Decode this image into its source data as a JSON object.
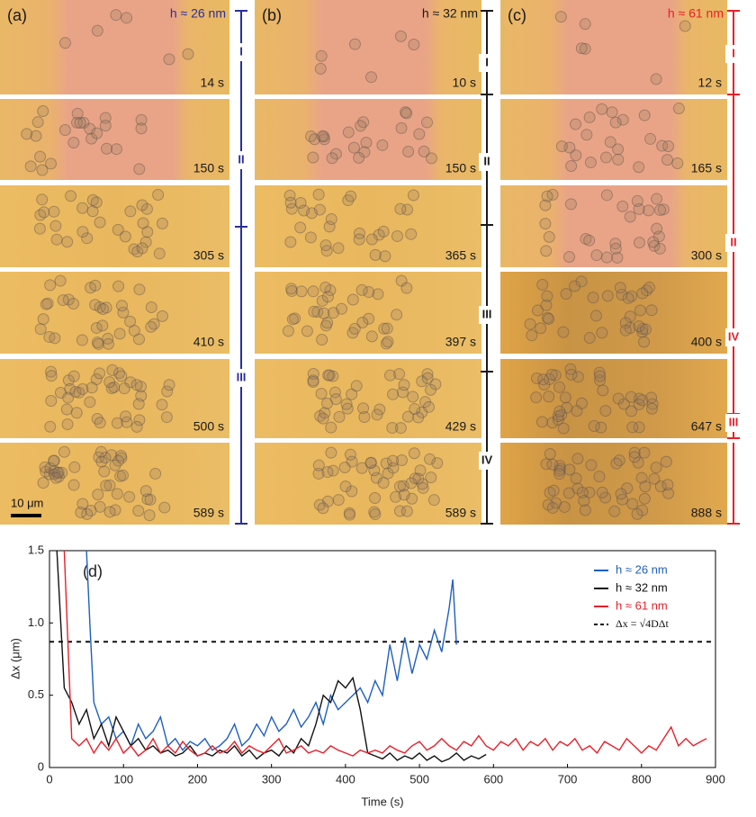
{
  "panels": [
    {
      "label": "(a)",
      "thickness": "h ≈ 26 nm",
      "color": "#2a2f9c",
      "times": [
        "14 s",
        "150 s",
        "305 s",
        "410 s",
        "500 s",
        "589 s"
      ],
      "stages": [
        "I",
        "II",
        "III"
      ]
    },
    {
      "label": "(b)",
      "thickness": "h ≈ 32 nm",
      "color": "#1a1a1a",
      "times": [
        "10 s",
        "150 s",
        "365 s",
        "397 s",
        "429 s",
        "589 s"
      ],
      "stages": [
        "I",
        "II",
        "III",
        "IV"
      ]
    },
    {
      "label": "(c)",
      "thickness": "h ≈ 61 nm",
      "color": "#e8202a",
      "times": [
        "12 s",
        "165 s",
        "300 s",
        "400 s",
        "647 s",
        "888 s"
      ],
      "stages": [
        "I",
        "II",
        "IV",
        "III"
      ]
    }
  ],
  "scale_bar": "10 μm",
  "chart_data": {
    "type": "line",
    "annotation": "(d)",
    "x_label": "Time (s)",
    "y_label": "Δx (μm)",
    "xlim": [
      0,
      900
    ],
    "xticks": [
      0,
      100,
      200,
      300,
      400,
      500,
      600,
      700,
      800,
      900
    ],
    "ylim": [
      0,
      1.5
    ],
    "yticks": [
      0,
      0.5,
      {
        "value": 1,
        "label": "1.0"
      },
      1.5
    ],
    "legend": "upper right",
    "series": [
      {
        "name": "h ≈ 26 nm",
        "color": "#1f5fbf",
        "x": [
          50,
          55,
          60,
          70,
          80,
          90,
          100,
          110,
          120,
          130,
          140,
          150,
          160,
          170,
          180,
          190,
          200,
          210,
          220,
          230,
          240,
          250,
          260,
          270,
          280,
          290,
          300,
          310,
          320,
          330,
          340,
          350,
          360,
          370,
          380,
          390,
          400,
          410,
          420,
          430,
          440,
          450,
          460,
          470,
          480,
          490,
          500,
          510,
          520,
          530,
          540,
          545,
          550
        ],
        "values": [
          1.5,
          0.95,
          0.45,
          0.3,
          0.35,
          0.2,
          0.25,
          0.15,
          0.3,
          0.2,
          0.25,
          0.35,
          0.15,
          0.2,
          0.12,
          0.18,
          0.15,
          0.2,
          0.12,
          0.15,
          0.2,
          0.3,
          0.15,
          0.2,
          0.3,
          0.22,
          0.35,
          0.25,
          0.3,
          0.4,
          0.28,
          0.35,
          0.45,
          0.3,
          0.5,
          0.4,
          0.45,
          0.5,
          0.55,
          0.45,
          0.6,
          0.5,
          0.85,
          0.6,
          0.9,
          0.65,
          0.85,
          0.75,
          0.95,
          0.8,
          1.1,
          1.3,
          0.85
        ]
      },
      {
        "name": "h ≈ 32 nm",
        "color": "#111111",
        "x": [
          10,
          20,
          30,
          40,
          50,
          60,
          70,
          80,
          90,
          100,
          110,
          120,
          130,
          140,
          150,
          160,
          170,
          180,
          190,
          200,
          210,
          220,
          230,
          240,
          250,
          260,
          270,
          280,
          290,
          300,
          310,
          320,
          330,
          340,
          350,
          360,
          370,
          380,
          390,
          400,
          410,
          420,
          430,
          440,
          450,
          460,
          470,
          480,
          490,
          500,
          510,
          520,
          530,
          540,
          550,
          560,
          570,
          580,
          590
        ],
        "values": [
          1.5,
          0.55,
          0.45,
          0.3,
          0.4,
          0.2,
          0.3,
          0.15,
          0.35,
          0.25,
          0.15,
          0.2,
          0.12,
          0.15,
          0.1,
          0.12,
          0.08,
          0.1,
          0.15,
          0.08,
          0.1,
          0.08,
          0.12,
          0.1,
          0.15,
          0.08,
          0.12,
          0.06,
          0.1,
          0.12,
          0.08,
          0.15,
          0.1,
          0.2,
          0.15,
          0.3,
          0.5,
          0.45,
          0.6,
          0.55,
          0.62,
          0.4,
          0.1,
          0.08,
          0.06,
          0.1,
          0.05,
          0.08,
          0.06,
          0.1,
          0.05,
          0.08,
          0.04,
          0.06,
          0.1,
          0.05,
          0.08,
          0.06,
          0.09
        ]
      },
      {
        "name": "h ≈ 61 nm",
        "color": "#e8202a",
        "x": [
          20,
          30,
          40,
          50,
          60,
          70,
          80,
          90,
          100,
          110,
          120,
          130,
          140,
          150,
          160,
          170,
          180,
          190,
          200,
          210,
          220,
          230,
          240,
          250,
          260,
          270,
          280,
          290,
          300,
          310,
          320,
          330,
          340,
          350,
          360,
          370,
          380,
          390,
          400,
          410,
          420,
          430,
          440,
          450,
          460,
          470,
          480,
          490,
          500,
          510,
          520,
          530,
          540,
          550,
          560,
          570,
          580,
          590,
          600,
          610,
          620,
          630,
          640,
          650,
          660,
          670,
          680,
          690,
          700,
          710,
          720,
          730,
          740,
          750,
          760,
          770,
          780,
          790,
          800,
          810,
          820,
          830,
          840,
          850,
          860,
          870,
          880,
          888
        ],
        "values": [
          1.5,
          0.2,
          0.15,
          0.2,
          0.1,
          0.18,
          0.12,
          0.2,
          0.1,
          0.15,
          0.08,
          0.12,
          0.2,
          0.1,
          0.15,
          0.1,
          0.18,
          0.12,
          0.08,
          0.1,
          0.15,
          0.1,
          0.12,
          0.18,
          0.1,
          0.15,
          0.12,
          0.1,
          0.15,
          0.2,
          0.1,
          0.12,
          0.15,
          0.1,
          0.12,
          0.1,
          0.15,
          0.12,
          0.1,
          0.08,
          0.12,
          0.1,
          0.12,
          0.1,
          0.15,
          0.12,
          0.1,
          0.15,
          0.18,
          0.12,
          0.15,
          0.2,
          0.15,
          0.12,
          0.18,
          0.15,
          0.22,
          0.15,
          0.12,
          0.18,
          0.15,
          0.2,
          0.12,
          0.18,
          0.15,
          0.2,
          0.12,
          0.18,
          0.15,
          0.2,
          0.12,
          0.15,
          0.1,
          0.18,
          0.15,
          0.12,
          0.2,
          0.15,
          0.1,
          0.15,
          0.12,
          0.2,
          0.28,
          0.15,
          0.2,
          0.15,
          0.18,
          0.2
        ]
      }
    ],
    "reference": {
      "name": "Δx = √4DΔt",
      "value": 0.87
    }
  }
}
